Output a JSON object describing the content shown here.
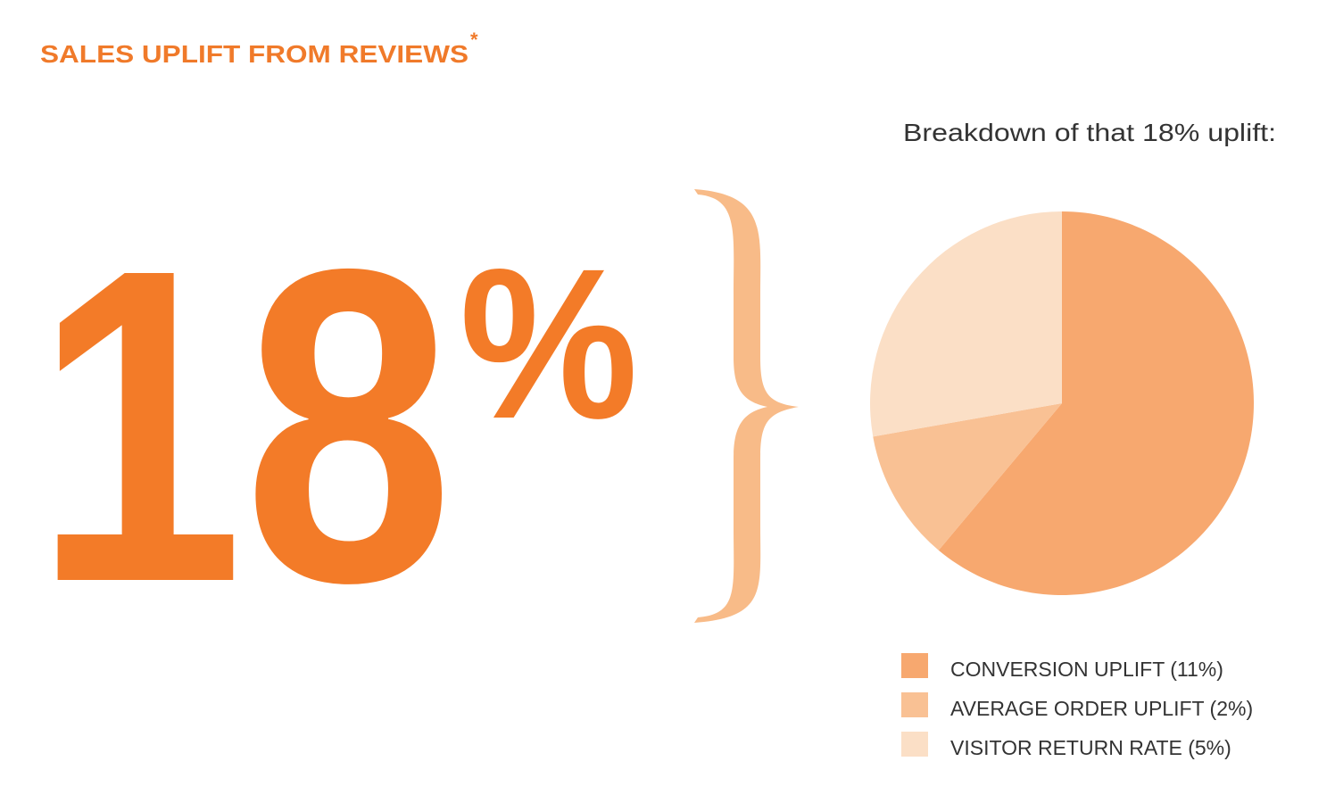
{
  "chart_data": {
    "type": "pie",
    "title": "SALES UPLIFT FROM REVIEWS",
    "title_mark": "*",
    "headline": "18",
    "headline_unit": "%",
    "subtitle": "Breakdown of that 18% uplift:",
    "categories": [
      "CONVERSION UPLIFT (11%)",
      "AVERAGE ORDER UPLIFT (2%)",
      "VISITOR RETURN RATE (5%)"
    ],
    "values": [
      11,
      2,
      5
    ],
    "colors": [
      "#f7a86f",
      "#f9c194",
      "#fbdfc6"
    ]
  }
}
